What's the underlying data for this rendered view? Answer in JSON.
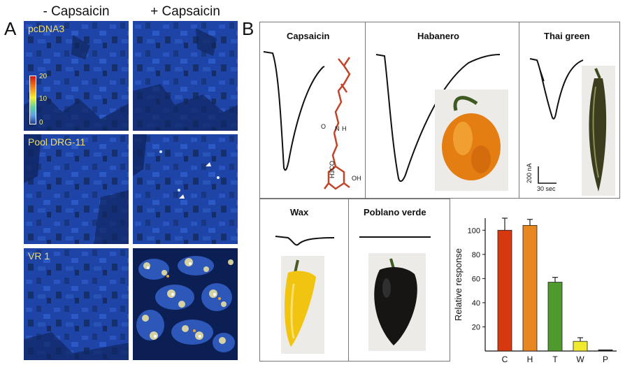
{
  "panel_a": {
    "letter": "A",
    "col_minus": "- Capsaicin",
    "col_plus": "+ Capsaicin",
    "rows": [
      "pcDNA3",
      "Pool DRG-11",
      "VR 1"
    ],
    "colorbar_ticks": [
      "20",
      "10",
      "0"
    ]
  },
  "panel_b": {
    "letter": "B",
    "titles": {
      "capsaicin": "Capsaicin",
      "habanero": "Habanero",
      "thai": "Thai green",
      "wax": "Wax",
      "poblano": "Poblano verde"
    },
    "molecule_labels": {
      "o": "O",
      "n": "N",
      "h": "H",
      "oh": "OH",
      "h3co": "H3CO"
    },
    "scale_current": "200 nA",
    "scale_time": "30 sec"
  },
  "chart_data": {
    "type": "bar",
    "categories": [
      "C",
      "H",
      "T",
      "W",
      "P"
    ],
    "values": [
      100,
      104,
      57,
      8,
      1
    ],
    "errors": [
      10,
      5,
      4,
      3,
      0
    ],
    "colors": [
      "#d8380f",
      "#e88620",
      "#4f9a2c",
      "#f0ea2e",
      "#222222"
    ],
    "ylabel": "Relative response",
    "ylim": [
      0,
      110
    ],
    "yticks": [
      20,
      40,
      60,
      80,
      100
    ]
  }
}
